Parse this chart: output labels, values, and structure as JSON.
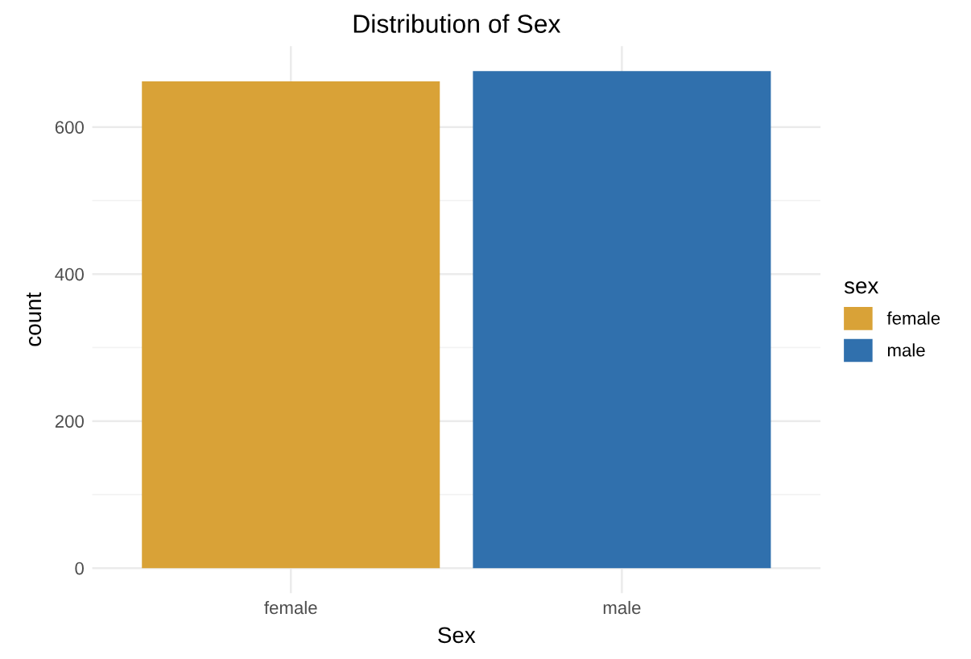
{
  "chart_data": {
    "type": "bar",
    "title": "Distribution of Sex",
    "xlabel": "Sex",
    "ylabel": "count",
    "legend_title": "sex",
    "categories": [
      "female",
      "male"
    ],
    "series": [
      {
        "name": "female",
        "color": "#d9a237",
        "values": [
          662,
          null
        ]
      },
      {
        "name": "male",
        "color": "#3070ad",
        "values": [
          null,
          676
        ]
      }
    ],
    "ylim": [
      -34,
      710
    ],
    "yticks": [
      0,
      200,
      400,
      600
    ],
    "grid": true,
    "legend": "right"
  }
}
